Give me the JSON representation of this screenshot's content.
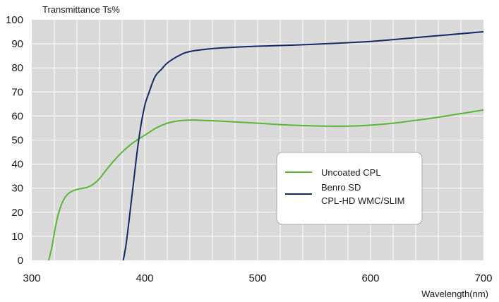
{
  "chart_data": {
    "type": "line",
    "ylabel": "Transmittance Ts%",
    "xlabel": "Wavelength(nm)",
    "xlim": [
      300,
      700
    ],
    "ylim": [
      0,
      100
    ],
    "x_ticks": [
      300,
      400,
      500,
      600,
      700
    ],
    "y_ticks": [
      0,
      10,
      20,
      30,
      40,
      50,
      60,
      70,
      80,
      90,
      100
    ],
    "grid": true,
    "plot_background": "#d9d9d9",
    "grid_color": "#ffffff",
    "legend_position": "center-right",
    "series": [
      {
        "name": "Uncoated CPL",
        "color": "#5ab534",
        "points": [
          [
            315,
            0
          ],
          [
            318,
            6
          ],
          [
            321,
            14
          ],
          [
            324,
            20
          ],
          [
            328,
            25
          ],
          [
            333,
            28
          ],
          [
            340,
            29.5
          ],
          [
            350,
            30.5
          ],
          [
            358,
            33
          ],
          [
            365,
            37
          ],
          [
            372,
            41
          ],
          [
            380,
            45
          ],
          [
            390,
            49
          ],
          [
            400,
            52
          ],
          [
            410,
            55
          ],
          [
            420,
            57
          ],
          [
            430,
            58
          ],
          [
            440,
            58.3
          ],
          [
            450,
            58.2
          ],
          [
            470,
            57.8
          ],
          [
            500,
            57
          ],
          [
            530,
            56.2
          ],
          [
            560,
            55.8
          ],
          [
            580,
            55.8
          ],
          [
            600,
            56.2
          ],
          [
            620,
            57
          ],
          [
            640,
            58.2
          ],
          [
            660,
            59.5
          ],
          [
            680,
            61
          ],
          [
            700,
            62.5
          ]
        ]
      },
      {
        "name": "Benro SD CPL-HD WMC/SLIM",
        "color": "#142864",
        "points": [
          [
            381,
            0
          ],
          [
            383,
            5
          ],
          [
            385,
            12
          ],
          [
            387,
            20
          ],
          [
            389,
            28
          ],
          [
            391,
            36
          ],
          [
            393,
            44
          ],
          [
            395,
            51
          ],
          [
            397,
            57
          ],
          [
            399,
            62
          ],
          [
            401,
            66
          ],
          [
            404,
            70
          ],
          [
            407,
            74
          ],
          [
            410,
            77
          ],
          [
            415,
            79.5
          ],
          [
            420,
            82
          ],
          [
            430,
            85
          ],
          [
            440,
            86.8
          ],
          [
            460,
            88
          ],
          [
            480,
            88.6
          ],
          [
            500,
            89
          ],
          [
            550,
            89.8
          ],
          [
            600,
            91
          ],
          [
            650,
            93
          ],
          [
            700,
            95
          ]
        ]
      }
    ],
    "legend": {
      "entries": [
        "Uncoated CPL",
        "Benro SD",
        "CPL-HD WMC/SLIM"
      ]
    }
  }
}
